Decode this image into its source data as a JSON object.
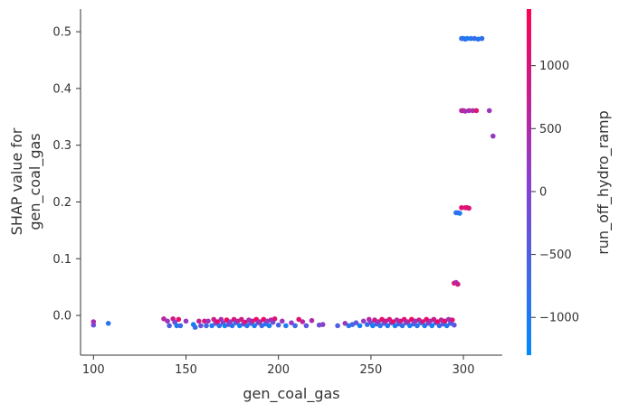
{
  "chart_data": {
    "type": "scatter",
    "title": "",
    "xlabel": "gen_coal_gas",
    "ylabel_lines": [
      "SHAP value for",
      "gen_coal_gas"
    ],
    "xlim": [
      93,
      321
    ],
    "ylim": [
      -0.07,
      0.54
    ],
    "x_ticks": [
      100,
      150,
      200,
      250,
      300
    ],
    "y_ticks": [
      0.0,
      0.1,
      0.2,
      0.3,
      0.4,
      0.5
    ],
    "y_tick_labels": [
      "0.0",
      "0.1",
      "0.2",
      "0.3",
      "0.4",
      "0.5"
    ],
    "grid": false,
    "colorbar": {
      "label": "run_off_hydro_ramp",
      "range": [
        -1300,
        1450
      ],
      "ticks": [
        -1000,
        -500,
        0,
        500,
        1000
      ],
      "tick_labels": [
        "−1000",
        "−500",
        "0",
        "500",
        "1000"
      ],
      "color_low": "#008bfb",
      "color_high": "#ff0052"
    },
    "points": [
      {
        "x": 100,
        "y": -0.017,
        "c": -200
      },
      {
        "x": 100,
        "y": -0.011,
        "c": 400
      },
      {
        "x": 108,
        "y": -0.014,
        "c": -900
      },
      {
        "x": 138,
        "y": -0.006,
        "c": 600
      },
      {
        "x": 140,
        "y": -0.01,
        "c": 300
      },
      {
        "x": 141,
        "y": -0.018,
        "c": -500
      },
      {
        "x": 143,
        "y": -0.006,
        "c": 900
      },
      {
        "x": 144,
        "y": -0.012,
        "c": -100
      },
      {
        "x": 145,
        "y": -0.018,
        "c": -1000
      },
      {
        "x": 146,
        "y": -0.007,
        "c": 1100
      },
      {
        "x": 147,
        "y": -0.018,
        "c": -700
      },
      {
        "x": 150,
        "y": -0.01,
        "c": 200
      },
      {
        "x": 154,
        "y": -0.016,
        "c": -1100
      },
      {
        "x": 155,
        "y": -0.021,
        "c": -800
      },
      {
        "x": 157,
        "y": -0.01,
        "c": 700
      },
      {
        "x": 158,
        "y": -0.018,
        "c": -300
      },
      {
        "x": 160,
        "y": -0.01,
        "c": 1000
      },
      {
        "x": 161,
        "y": -0.018,
        "c": -600
      },
      {
        "x": 162,
        "y": -0.01,
        "c": 300
      },
      {
        "x": 164,
        "y": -0.018,
        "c": -1000
      },
      {
        "x": 165,
        "y": -0.007,
        "c": 800
      },
      {
        "x": 166,
        "y": -0.014,
        "c": -200
      },
      {
        "x": 167,
        "y": -0.011,
        "c": 1200
      },
      {
        "x": 168,
        "y": -0.018,
        "c": -900
      },
      {
        "x": 169,
        "y": -0.007,
        "c": 500
      },
      {
        "x": 170,
        "y": -0.013,
        "c": 0
      },
      {
        "x": 171,
        "y": -0.018,
        "c": -1100
      },
      {
        "x": 172,
        "y": -0.008,
        "c": 1300
      },
      {
        "x": 173,
        "y": -0.016,
        "c": -400
      },
      {
        "x": 174,
        "y": -0.011,
        "c": 200
      },
      {
        "x": 175,
        "y": -0.018,
        "c": -800
      },
      {
        "x": 176,
        "y": -0.007,
        "c": 1000
      },
      {
        "x": 177,
        "y": -0.013,
        "c": -600
      },
      {
        "x": 178,
        "y": -0.01,
        "c": 600
      },
      {
        "x": 179,
        "y": -0.018,
        "c": -1200
      },
      {
        "x": 180,
        "y": -0.007,
        "c": 900
      },
      {
        "x": 181,
        "y": -0.015,
        "c": -100
      },
      {
        "x": 182,
        "y": -0.012,
        "c": 1100
      },
      {
        "x": 183,
        "y": -0.018,
        "c": -900
      },
      {
        "x": 184,
        "y": -0.008,
        "c": 400
      },
      {
        "x": 185,
        "y": -0.014,
        "c": -500
      },
      {
        "x": 186,
        "y": -0.01,
        "c": 800
      },
      {
        "x": 187,
        "y": -0.018,
        "c": -1000
      },
      {
        "x": 188,
        "y": -0.007,
        "c": 1200
      },
      {
        "x": 189,
        "y": -0.013,
        "c": -300
      },
      {
        "x": 190,
        "y": -0.011,
        "c": 500
      },
      {
        "x": 191,
        "y": -0.018,
        "c": -700
      },
      {
        "x": 192,
        "y": -0.007,
        "c": 1300
      },
      {
        "x": 193,
        "y": -0.015,
        "c": -900
      },
      {
        "x": 194,
        "y": -0.01,
        "c": 100
      },
      {
        "x": 195,
        "y": -0.018,
        "c": -1100
      },
      {
        "x": 196,
        "y": -0.008,
        "c": 700
      },
      {
        "x": 197,
        "y": -0.012,
        "c": -200
      },
      {
        "x": 198,
        "y": -0.006,
        "c": 1000
      },
      {
        "x": 200,
        "y": -0.017,
        "c": -600
      },
      {
        "x": 202,
        "y": -0.01,
        "c": 300
      },
      {
        "x": 204,
        "y": -0.018,
        "c": -1000
      },
      {
        "x": 207,
        "y": -0.013,
        "c": 200
      },
      {
        "x": 209,
        "y": -0.018,
        "c": -700
      },
      {
        "x": 211,
        "y": -0.007,
        "c": 1100
      },
      {
        "x": 213,
        "y": -0.011,
        "c": 600
      },
      {
        "x": 215,
        "y": -0.018,
        "c": -400
      },
      {
        "x": 218,
        "y": -0.009,
        "c": 500
      },
      {
        "x": 222,
        "y": -0.017,
        "c": -200
      },
      {
        "x": 224,
        "y": -0.016,
        "c": 100
      },
      {
        "x": 232,
        "y": -0.018,
        "c": -500
      },
      {
        "x": 236,
        "y": -0.014,
        "c": 300
      },
      {
        "x": 238,
        "y": -0.018,
        "c": -900
      },
      {
        "x": 240,
        "y": -0.016,
        "c": -700
      },
      {
        "x": 242,
        "y": -0.013,
        "c": -300
      },
      {
        "x": 244,
        "y": -0.018,
        "c": -1100
      },
      {
        "x": 246,
        "y": -0.01,
        "c": 200
      },
      {
        "x": 248,
        "y": -0.016,
        "c": -800
      },
      {
        "x": 249,
        "y": -0.007,
        "c": 600
      },
      {
        "x": 250,
        "y": -0.013,
        "c": -100
      },
      {
        "x": 251,
        "y": -0.018,
        "c": -1200
      },
      {
        "x": 252,
        "y": -0.008,
        "c": 900
      },
      {
        "x": 253,
        "y": -0.015,
        "c": -500
      },
      {
        "x": 254,
        "y": -0.011,
        "c": 400
      },
      {
        "x": 255,
        "y": -0.018,
        "c": -900
      },
      {
        "x": 256,
        "y": -0.007,
        "c": 1200
      },
      {
        "x": 257,
        "y": -0.014,
        "c": -300
      },
      {
        "x": 258,
        "y": -0.01,
        "c": 700
      },
      {
        "x": 259,
        "y": -0.018,
        "c": -1000
      },
      {
        "x": 260,
        "y": -0.007,
        "c": 1000
      },
      {
        "x": 261,
        "y": -0.013,
        "c": 0
      },
      {
        "x": 262,
        "y": -0.011,
        "c": 1300
      },
      {
        "x": 263,
        "y": -0.018,
        "c": -1100
      },
      {
        "x": 264,
        "y": -0.008,
        "c": 500
      },
      {
        "x": 265,
        "y": -0.015,
        "c": -600
      },
      {
        "x": 266,
        "y": -0.01,
        "c": 900
      },
      {
        "x": 267,
        "y": -0.018,
        "c": -800
      },
      {
        "x": 268,
        "y": -0.007,
        "c": 1100
      },
      {
        "x": 269,
        "y": -0.013,
        "c": -200
      },
      {
        "x": 270,
        "y": -0.011,
        "c": 600
      },
      {
        "x": 271,
        "y": -0.018,
        "c": -1200
      },
      {
        "x": 272,
        "y": -0.007,
        "c": 1300
      },
      {
        "x": 273,
        "y": -0.015,
        "c": -400
      },
      {
        "x": 274,
        "y": -0.01,
        "c": 300
      },
      {
        "x": 275,
        "y": -0.018,
        "c": -900
      },
      {
        "x": 276,
        "y": -0.008,
        "c": 800
      },
      {
        "x": 277,
        "y": -0.013,
        "c": -700
      },
      {
        "x": 278,
        "y": -0.011,
        "c": 1000
      },
      {
        "x": 279,
        "y": -0.018,
        "c": -1000
      },
      {
        "x": 280,
        "y": -0.007,
        "c": 1200
      },
      {
        "x": 281,
        "y": -0.014,
        "c": -100
      },
      {
        "x": 282,
        "y": -0.01,
        "c": 500
      },
      {
        "x": 283,
        "y": -0.018,
        "c": -1100
      },
      {
        "x": 284,
        "y": -0.007,
        "c": 900
      },
      {
        "x": 285,
        "y": -0.013,
        "c": -500
      },
      {
        "x": 286,
        "y": -0.011,
        "c": 1300
      },
      {
        "x": 287,
        "y": -0.018,
        "c": -800
      },
      {
        "x": 288,
        "y": -0.008,
        "c": 700
      },
      {
        "x": 289,
        "y": -0.015,
        "c": -300
      },
      {
        "x": 290,
        "y": -0.01,
        "c": 1100
      },
      {
        "x": 291,
        "y": -0.018,
        "c": -1000
      },
      {
        "x": 292,
        "y": -0.007,
        "c": 400
      },
      {
        "x": 293,
        "y": -0.014,
        "c": -600
      },
      {
        "x": 294,
        "y": -0.008,
        "c": 1000
      },
      {
        "x": 295,
        "y": -0.017,
        "c": -400
      },
      {
        "x": 295,
        "y": 0.057,
        "c": 1200
      },
      {
        "x": 296,
        "y": 0.058,
        "c": 400
      },
      {
        "x": 297,
        "y": 0.055,
        "c": 900
      },
      {
        "x": 296,
        "y": 0.181,
        "c": -900
      },
      {
        "x": 297,
        "y": 0.181,
        "c": -700
      },
      {
        "x": 298,
        "y": 0.18,
        "c": -1000
      },
      {
        "x": 299,
        "y": 0.19,
        "c": 1200
      },
      {
        "x": 301,
        "y": 0.19,
        "c": 800
      },
      {
        "x": 302,
        "y": 0.19,
        "c": 1300
      },
      {
        "x": 303,
        "y": 0.189,
        "c": 1000
      },
      {
        "x": 299,
        "y": 0.361,
        "c": 500
      },
      {
        "x": 300,
        "y": 0.361,
        "c": 800
      },
      {
        "x": 301,
        "y": 0.36,
        "c": 300
      },
      {
        "x": 303,
        "y": 0.361,
        "c": 600
      },
      {
        "x": 305,
        "y": 0.361,
        "c": 400
      },
      {
        "x": 307,
        "y": 0.361,
        "c": 1100
      },
      {
        "x": 314,
        "y": 0.361,
        "c": 300
      },
      {
        "x": 316,
        "y": 0.316,
        "c": 200
      },
      {
        "x": 299,
        "y": 0.488,
        "c": -800
      },
      {
        "x": 300,
        "y": 0.488,
        "c": -1000
      },
      {
        "x": 301,
        "y": 0.487,
        "c": -600
      },
      {
        "x": 302,
        "y": 0.488,
        "c": -1100
      },
      {
        "x": 304,
        "y": 0.488,
        "c": -900
      },
      {
        "x": 306,
        "y": 0.488,
        "c": -700
      },
      {
        "x": 308,
        "y": 0.487,
        "c": -1000
      },
      {
        "x": 310,
        "y": 0.488,
        "c": -800
      }
    ]
  }
}
